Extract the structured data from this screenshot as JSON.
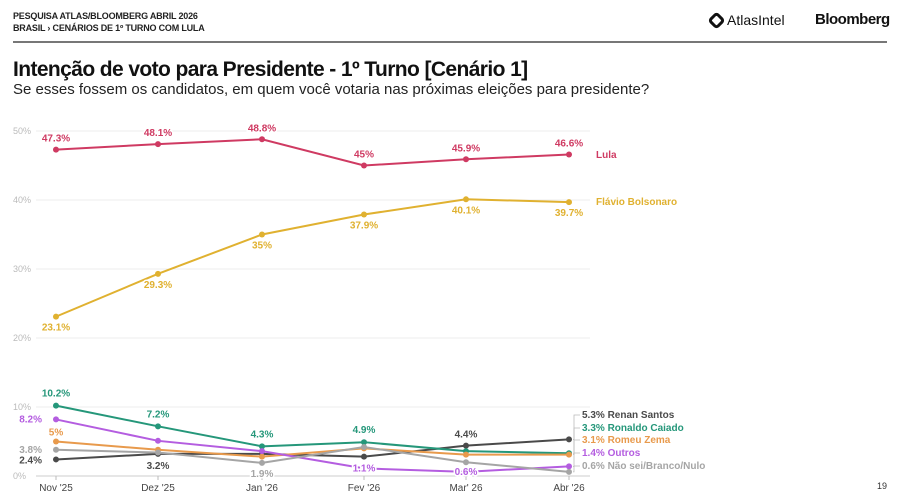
{
  "header": {
    "line1": "PESQUISA ATLAS/BLOOMBERG ABRIL 2026",
    "line2": "BRASIL › CENÁRIOS DE 1º TURNO COM LULA",
    "logo_atlas": "AtlasIntel",
    "logo_bloomberg": "Bloomberg"
  },
  "title": "Intenção de voto para Presidente - 1º Turno [Cenário 1]",
  "subtitle": "Se esses fossem os candidatos, em quem você votaria nas próximas eleições para presidente?",
  "page_number": "19",
  "chart_data": {
    "type": "line",
    "categories": [
      "Nov '25",
      "Dez '25",
      "Jan '26",
      "Fev '26",
      "Mar' 26",
      "Abr '26"
    ],
    "yticks": [
      "0%",
      "10%",
      "20%",
      "30%",
      "40%",
      "50%"
    ],
    "ylim": [
      0,
      50
    ],
    "grid": true,
    "series": [
      {
        "name": "Lula",
        "color": "#cf3a62",
        "values": [
          47.3,
          48.1,
          48.8,
          45,
          45.9,
          46.6
        ],
        "labels": [
          "47.3%",
          "48.1%",
          "48.8%",
          "45%",
          "45.9%",
          "46.6%"
        ],
        "end_label": "Lula"
      },
      {
        "name": "Flávio Bolsonaro",
        "color": "#e0b130",
        "values": [
          23.1,
          29.3,
          35,
          37.9,
          40.1,
          39.7
        ],
        "labels": [
          "23.1%",
          "29.3%",
          "35%",
          "37.9%",
          "40.1%",
          "39.7%"
        ],
        "end_label": "Flávio Bolsonaro"
      },
      {
        "name": "Renan Santos",
        "color": "#4a4a4a",
        "values": [
          2.4,
          3.2,
          3.2,
          2.8,
          4.4,
          5.3
        ],
        "labels": [
          "2.4%",
          "3.2%",
          null,
          null,
          "4.4%",
          null
        ],
        "end_label": "5.3% Renan Santos"
      },
      {
        "name": "Ronaldo Caiado",
        "color": "#25977a",
        "values": [
          10.2,
          7.2,
          4.3,
          4.9,
          3.6,
          3.3
        ],
        "labels": [
          "10.2%",
          "7.2%",
          "4.3%",
          "4.9%",
          null,
          null
        ],
        "end_label": "3.3% Ronaldo Caiado"
      },
      {
        "name": "Romeu Zema",
        "color": "#e89a4c",
        "values": [
          5,
          3.8,
          2.8,
          4.0,
          3.1,
          3.1
        ],
        "labels": [
          "5%",
          null,
          null,
          null,
          null,
          null
        ],
        "end_label": "3.1% Romeu Zema"
      },
      {
        "name": "Outros",
        "color": "#b45de0",
        "values": [
          8.2,
          5.1,
          3.6,
          1.1,
          0.6,
          1.4
        ],
        "labels": [
          "8.2%",
          null,
          null,
          "1.1%",
          "0.6%",
          null
        ],
        "end_label": "1.4% Outros"
      },
      {
        "name": "Não sei/Branco/Nulo",
        "color": "#a5a5a5",
        "values": [
          3.8,
          3.4,
          1.9,
          4.2,
          2.0,
          0.6
        ],
        "labels": [
          "3.8%",
          null,
          "1.9%",
          null,
          null,
          null
        ],
        "end_label": "0.6% Não sei/Branco/Nulo"
      }
    ]
  }
}
